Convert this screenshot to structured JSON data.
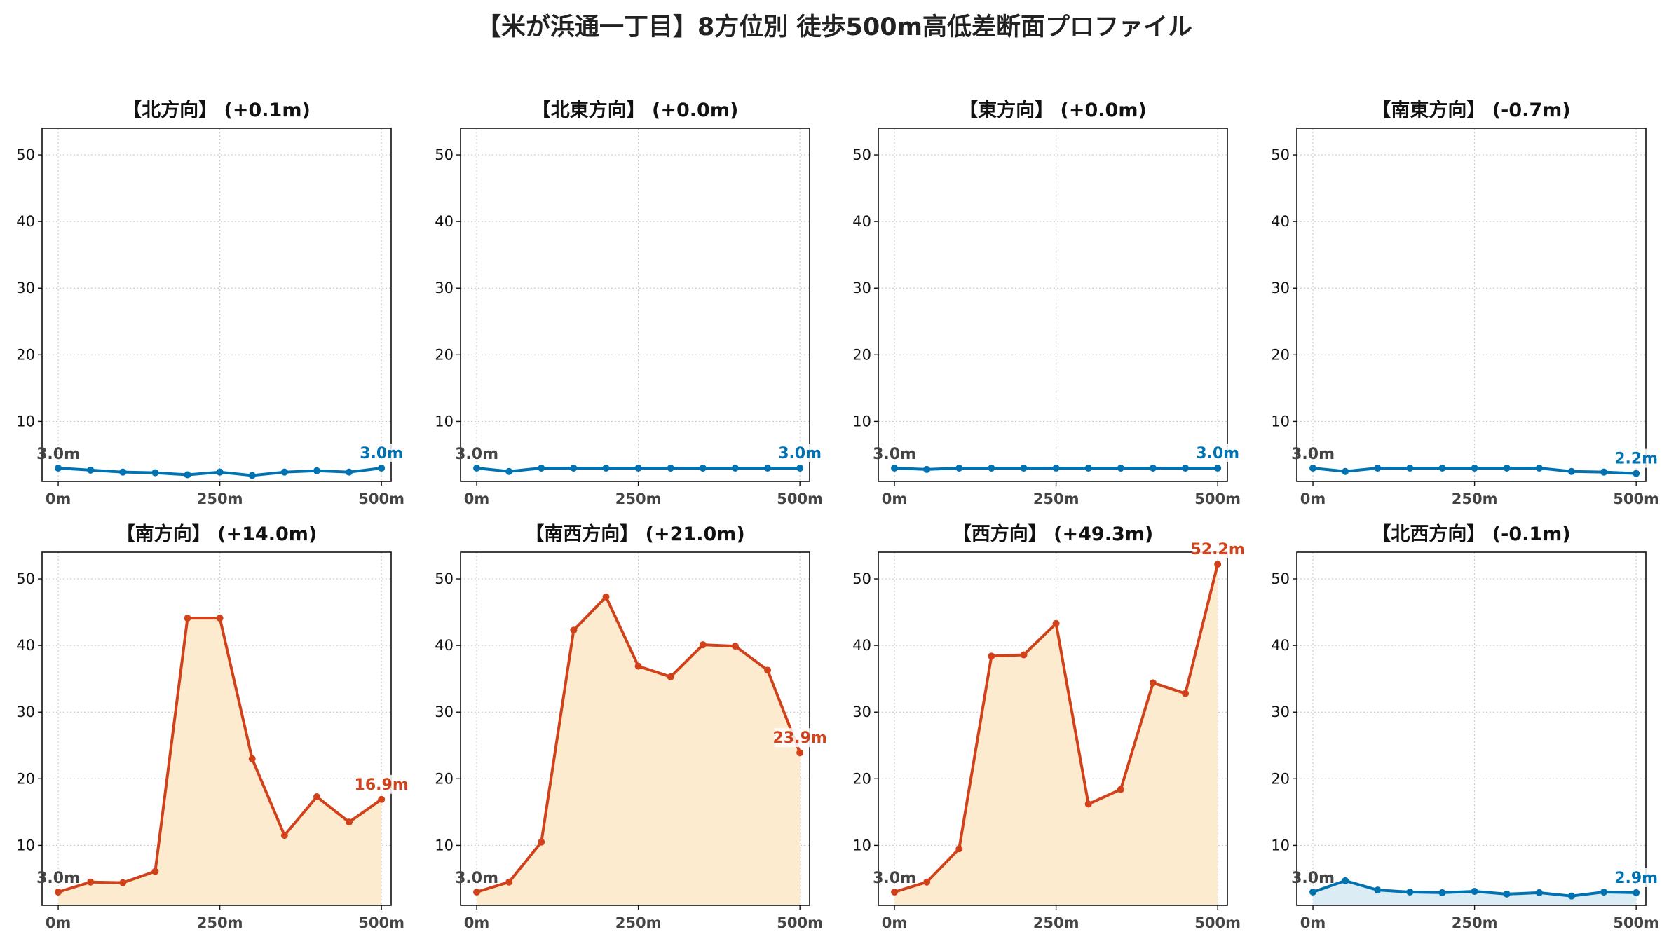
{
  "title": "【米が浜通一丁目】8方位別 徒歩500m高低差断面プロファイル",
  "colors": {
    "flat_line": "#0072b2",
    "steep_line": "#d1421a",
    "steep_fill": "#fdebd0",
    "flat_fill": "#dcecf5",
    "grid": "#cccccc",
    "start_label": "#444444"
  },
  "chart_data": [
    {
      "type": "line",
      "title": "【北方向】 (+0.1m)",
      "style": "flat",
      "fill": false,
      "x": [
        0,
        50,
        100,
        150,
        200,
        250,
        300,
        350,
        400,
        450,
        500
      ],
      "y": [
        3.0,
        2.7,
        2.4,
        2.3,
        2.0,
        2.4,
        1.9,
        2.4,
        2.6,
        2.4,
        3.0
      ],
      "xticks": [
        "0m",
        "250m",
        "500m"
      ],
      "ylim": [
        1.0,
        54.0
      ],
      "yticks": [
        10,
        20,
        30,
        40,
        50
      ],
      "start_label": "3.0m",
      "end_label": "3.0m",
      "grid": true
    },
    {
      "type": "line",
      "title": "【北東方向】 (+0.0m)",
      "style": "flat",
      "fill": false,
      "x": [
        0,
        50,
        100,
        150,
        200,
        250,
        300,
        350,
        400,
        450,
        500
      ],
      "y": [
        3.0,
        2.5,
        3.0,
        3.0,
        3.0,
        3.0,
        3.0,
        3.0,
        3.0,
        3.0,
        3.0
      ],
      "xticks": [
        "0m",
        "250m",
        "500m"
      ],
      "ylim": [
        1.0,
        54.0
      ],
      "yticks": [
        10,
        20,
        30,
        40,
        50
      ],
      "start_label": "3.0m",
      "end_label": "3.0m",
      "grid": true
    },
    {
      "type": "line",
      "title": "【東方向】 (+0.0m)",
      "style": "flat",
      "fill": false,
      "x": [
        0,
        50,
        100,
        150,
        200,
        250,
        300,
        350,
        400,
        450,
        500
      ],
      "y": [
        3.0,
        2.8,
        3.0,
        3.0,
        3.0,
        3.0,
        3.0,
        3.0,
        3.0,
        3.0,
        3.0
      ],
      "xticks": [
        "0m",
        "250m",
        "500m"
      ],
      "ylim": [
        1.0,
        54.0
      ],
      "yticks": [
        10,
        20,
        30,
        40,
        50
      ],
      "start_label": "3.0m",
      "end_label": "3.0m",
      "grid": true
    },
    {
      "type": "line",
      "title": "【南東方向】 (-0.7m)",
      "style": "flat",
      "fill": false,
      "x": [
        0,
        50,
        100,
        150,
        200,
        250,
        300,
        350,
        400,
        450,
        500
      ],
      "y": [
        3.0,
        2.5,
        3.0,
        3.0,
        3.0,
        3.0,
        3.0,
        3.0,
        2.5,
        2.4,
        2.2
      ],
      "xticks": [
        "0m",
        "250m",
        "500m"
      ],
      "ylim": [
        1.0,
        54.0
      ],
      "yticks": [
        10,
        20,
        30,
        40,
        50
      ],
      "start_label": "3.0m",
      "end_label": "2.2m",
      "grid": true
    },
    {
      "type": "area",
      "title": "【南方向】 (+14.0m)",
      "style": "steep",
      "fill": true,
      "x": [
        0,
        50,
        100,
        150,
        200,
        250,
        300,
        350,
        400,
        450,
        500
      ],
      "y": [
        3.0,
        4.5,
        4.4,
        6.1,
        44.1,
        44.1,
        23.0,
        11.5,
        17.3,
        13.5,
        16.9
      ],
      "xticks": [
        "0m",
        "250m",
        "500m"
      ],
      "ylim": [
        1.0,
        54.0
      ],
      "yticks": [
        10,
        20,
        30,
        40,
        50
      ],
      "start_label": "3.0m",
      "end_label": "16.9m",
      "grid": true
    },
    {
      "type": "area",
      "title": "【南西方向】 (+21.0m)",
      "style": "steep",
      "fill": true,
      "x": [
        0,
        50,
        100,
        150,
        200,
        250,
        300,
        350,
        400,
        450,
        500
      ],
      "y": [
        3.0,
        4.5,
        10.5,
        42.3,
        47.3,
        36.9,
        35.3,
        40.1,
        39.9,
        36.3,
        23.9
      ],
      "xticks": [
        "0m",
        "250m",
        "500m"
      ],
      "ylim": [
        1.0,
        54.0
      ],
      "yticks": [
        10,
        20,
        30,
        40,
        50
      ],
      "start_label": "3.0m",
      "end_label": "23.9m",
      "grid": true
    },
    {
      "type": "area",
      "title": "【西方向】 (+49.3m)",
      "style": "steep",
      "fill": true,
      "x": [
        0,
        50,
        100,
        150,
        200,
        250,
        300,
        350,
        400,
        450,
        500
      ],
      "y": [
        3.0,
        4.5,
        9.5,
        38.4,
        38.6,
        43.3,
        16.2,
        18.4,
        34.4,
        32.8,
        52.2
      ],
      "xticks": [
        "0m",
        "250m",
        "500m"
      ],
      "ylim": [
        1.0,
        54.0
      ],
      "yticks": [
        10,
        20,
        30,
        40,
        50
      ],
      "start_label": "3.0m",
      "end_label": "52.2m",
      "grid": true
    },
    {
      "type": "area",
      "title": "【北西方向】 (-0.1m)",
      "style": "flat",
      "fill": true,
      "x": [
        0,
        50,
        100,
        150,
        200,
        250,
        300,
        350,
        400,
        450,
        500
      ],
      "y": [
        3.0,
        4.7,
        3.3,
        3.0,
        2.9,
        3.1,
        2.7,
        2.9,
        2.4,
        3.0,
        2.9
      ],
      "xticks": [
        "0m",
        "250m",
        "500m"
      ],
      "ylim": [
        1.0,
        54.0
      ],
      "yticks": [
        10,
        20,
        30,
        40,
        50
      ],
      "start_label": "3.0m",
      "end_label": "2.9m",
      "grid": true
    }
  ]
}
